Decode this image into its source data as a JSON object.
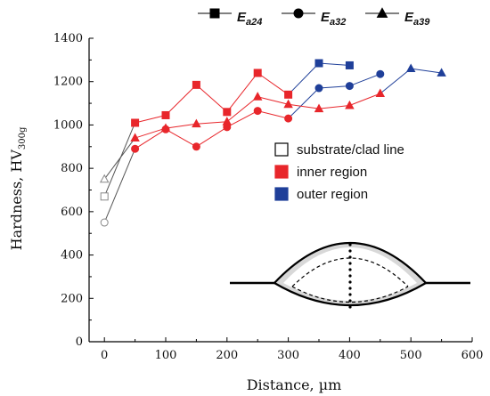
{
  "chart_data": {
    "type": "line",
    "xlabel": "Distance, µm",
    "ylabel": "Hardness, HV",
    "ylabel_sub": "300g",
    "xlim": [
      -25,
      600
    ],
    "ylim": [
      0,
      1400
    ],
    "xticks": [
      0,
      100,
      200,
      300,
      400,
      500,
      600
    ],
    "yticks": [
      0,
      200,
      400,
      600,
      800,
      1000,
      1200,
      1400
    ],
    "grid": false,
    "colors": {
      "substrate": "#888888",
      "inner": "#e8262b",
      "outer": "#1f3f99",
      "axis": "#000000"
    },
    "series": [
      {
        "name": "a24",
        "name_prefix": "E",
        "marker": "square",
        "points": [
          {
            "x": 0,
            "y": 670,
            "region": "substrate"
          },
          {
            "x": 50,
            "y": 1010,
            "region": "inner"
          },
          {
            "x": 100,
            "y": 1045,
            "region": "inner"
          },
          {
            "x": 150,
            "y": 1185,
            "region": "inner"
          },
          {
            "x": 200,
            "y": 1060,
            "region": "inner"
          },
          {
            "x": 250,
            "y": 1240,
            "region": "inner"
          },
          {
            "x": 300,
            "y": 1140,
            "region": "inner"
          },
          {
            "x": 350,
            "y": 1285,
            "region": "outer"
          },
          {
            "x": 400,
            "y": 1275,
            "region": "outer"
          }
        ]
      },
      {
        "name": "a32",
        "name_prefix": "E",
        "marker": "circle",
        "points": [
          {
            "x": 0,
            "y": 550,
            "region": "substrate"
          },
          {
            "x": 50,
            "y": 890,
            "region": "inner"
          },
          {
            "x": 100,
            "y": 980,
            "region": "inner"
          },
          {
            "x": 150,
            "y": 900,
            "region": "inner"
          },
          {
            "x": 200,
            "y": 990,
            "region": "inner"
          },
          {
            "x": 250,
            "y": 1065,
            "region": "inner"
          },
          {
            "x": 300,
            "y": 1030,
            "region": "inner"
          },
          {
            "x": 350,
            "y": 1170,
            "region": "outer"
          },
          {
            "x": 400,
            "y": 1180,
            "region": "outer"
          },
          {
            "x": 450,
            "y": 1235,
            "region": "outer"
          }
        ]
      },
      {
        "name": "a39",
        "name_prefix": "E",
        "marker": "triangle",
        "points": [
          {
            "x": 0,
            "y": 750,
            "region": "substrate"
          },
          {
            "x": 50,
            "y": 940,
            "region": "inner"
          },
          {
            "x": 100,
            "y": 985,
            "region": "inner"
          },
          {
            "x": 150,
            "y": 1005,
            "region": "inner"
          },
          {
            "x": 200,
            "y": 1015,
            "region": "inner"
          },
          {
            "x": 250,
            "y": 1130,
            "region": "inner"
          },
          {
            "x": 300,
            "y": 1095,
            "region": "inner"
          },
          {
            "x": 350,
            "y": 1075,
            "region": "inner"
          },
          {
            "x": 400,
            "y": 1090,
            "region": "inner"
          },
          {
            "x": 450,
            "y": 1145,
            "region": "inner"
          },
          {
            "x": 500,
            "y": 1260,
            "region": "outer"
          },
          {
            "x": 550,
            "y": 1240,
            "region": "outer"
          }
        ]
      }
    ],
    "region_legend": [
      {
        "key": "substrate",
        "label": "substrate/clad line"
      },
      {
        "key": "inner",
        "label": "inner region"
      },
      {
        "key": "outer",
        "label": "outer region"
      }
    ]
  }
}
